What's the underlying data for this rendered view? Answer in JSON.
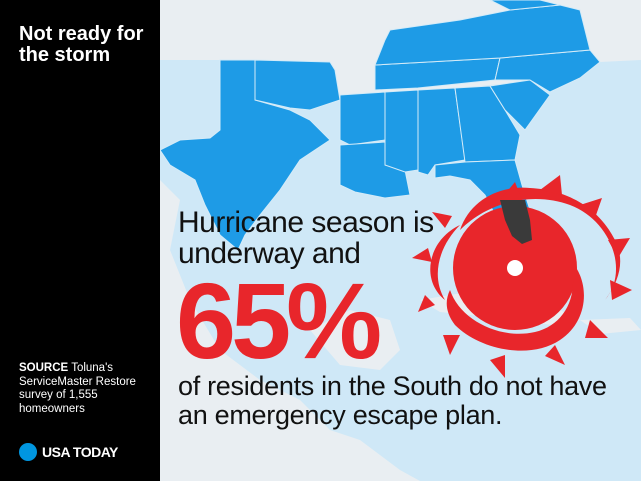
{
  "sidebar": {
    "headline": "Not ready for the storm",
    "source_label": "SOURCE",
    "source_text": " Toluna's ServiceMaster Restore survey of 1,555 homeowners",
    "brand": "USA TODAY"
  },
  "main": {
    "lead": "Hurricane season is underway and",
    "stat": "65%",
    "tail": "of residents in the South do not have an emergency escape plan."
  },
  "colors": {
    "states": "#1e9be6",
    "ocean": "#cfe8f7",
    "land": "#e9eef2",
    "hurricane": "#e8262b",
    "stat": "#e8262b"
  }
}
